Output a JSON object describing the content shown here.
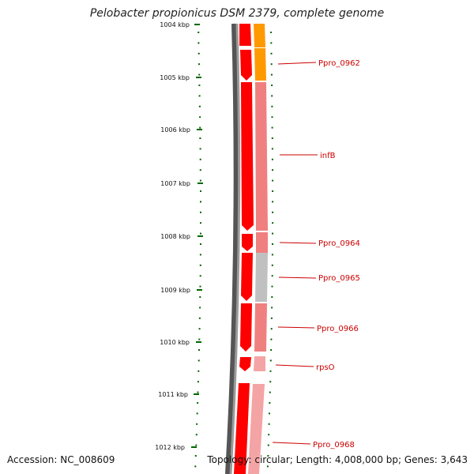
{
  "title": "Pelobacter propionicus DSM 2379, complete genome",
  "footer": {
    "accession": "Accession: NC_008609",
    "topology": "Topology: circular; Length: 4,008,000 bp; Genes: 3,643"
  },
  "ruler": {
    "ticks": [
      "1004 kbp",
      "1005 kbp",
      "1006 kbp",
      "1007 kbp",
      "1008 kbp",
      "1009 kbp",
      "1010 kbp",
      "1011 kbp",
      "1012 kbp"
    ]
  },
  "colors": {
    "forward_cds": "#ff0000",
    "cog_orange": "#ff9900",
    "cog_pink": "#f08080",
    "cog_light_pink": "#f4a4a4",
    "cog_gray": "#c0c0c0",
    "backbone": "#808080",
    "label": "#cc0000",
    "ruler": "#006600"
  },
  "features": [
    {
      "label": "Ppro_0962"
    },
    {
      "label": "infB"
    },
    {
      "label": "Ppro_0964"
    },
    {
      "label": "Ppro_0965"
    },
    {
      "label": "Ppro_0966"
    },
    {
      "label": "rpsO"
    },
    {
      "label": "Ppro_0968"
    }
  ]
}
